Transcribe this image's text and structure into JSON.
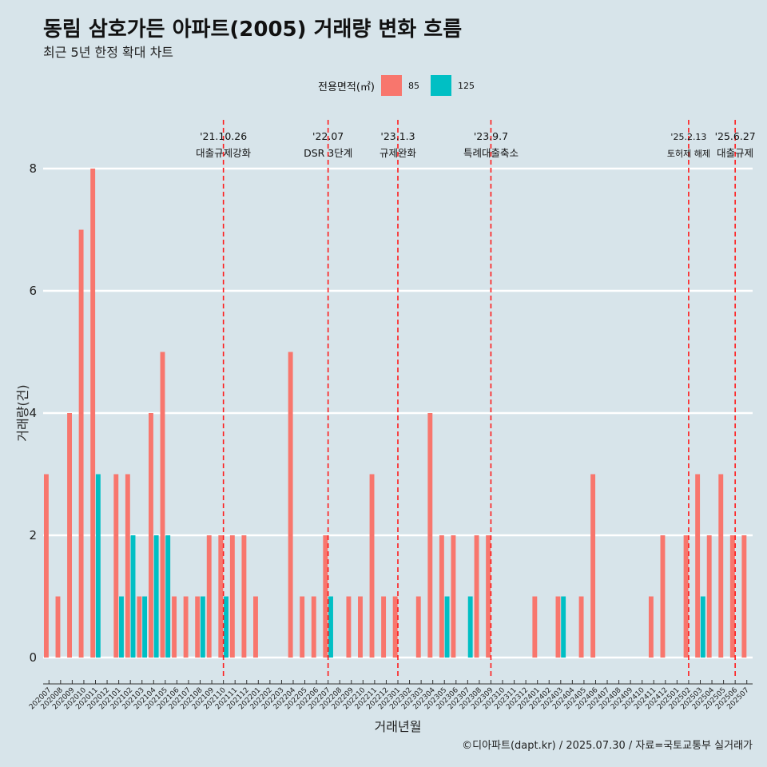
{
  "title": "동림 삼호가든 아파트(2005) 거래량 변화 흐름",
  "subtitle": "최근 5년 한정 확대 차트",
  "caption": "©디아파트(dapt.kr) / 2025.07.30 / 자료=국토교통부 실거래가",
  "legend": {
    "title": "전용면적(㎡)",
    "items": [
      {
        "label": "85",
        "color": "#f8766d"
      },
      {
        "label": "125",
        "color": "#00bfc4"
      }
    ]
  },
  "chart_data": {
    "type": "bar",
    "xlabel": "거래년월",
    "ylabel": "거래량(건)",
    "ylim": [
      0,
      8.8
    ],
    "yticks": [
      0,
      2,
      4,
      6,
      8
    ],
    "categories": [
      "202007",
      "202008",
      "202009",
      "202010",
      "202011",
      "202012",
      "202101",
      "202102",
      "202103",
      "202104",
      "202105",
      "202106",
      "202107",
      "202108",
      "202109",
      "202110",
      "202111",
      "202112",
      "202201",
      "202202",
      "202203",
      "202204",
      "202205",
      "202206",
      "202207",
      "202208",
      "202209",
      "202210",
      "202211",
      "202212",
      "202301",
      "202302",
      "202303",
      "202304",
      "202305",
      "202306",
      "202307",
      "202308",
      "202309",
      "202310",
      "202311",
      "202312",
      "202401",
      "202402",
      "202403",
      "202404",
      "202405",
      "202406",
      "202407",
      "202408",
      "202409",
      "202410",
      "202411",
      "202412",
      "202501",
      "202502",
      "202503",
      "202504",
      "202505",
      "202506",
      "202507"
    ],
    "series": [
      {
        "name": "85",
        "color": "#f8766d",
        "values": [
          3,
          1,
          4,
          7,
          8,
          0,
          3,
          3,
          1,
          4,
          5,
          1,
          1,
          1,
          2,
          2,
          2,
          2,
          1,
          0,
          0,
          5,
          1,
          1,
          2,
          0,
          1,
          1,
          3,
          1,
          1,
          0,
          1,
          4,
          2,
          2,
          0,
          2,
          2,
          0,
          0,
          0,
          1,
          0,
          1,
          0,
          1,
          3,
          0,
          0,
          0,
          0,
          1,
          2,
          0,
          2,
          3,
          2,
          3,
          2,
          2
        ]
      },
      {
        "name": "125",
        "color": "#00bfc4",
        "values": [
          0,
          0,
          0,
          0,
          3,
          0,
          1,
          2,
          1,
          2,
          2,
          0,
          0,
          1,
          0,
          1,
          0,
          0,
          0,
          0,
          0,
          0,
          0,
          0,
          1,
          0,
          0,
          0,
          0,
          0,
          0,
          0,
          0,
          0,
          1,
          0,
          1,
          0,
          0,
          0,
          0,
          0,
          0,
          0,
          1,
          0,
          0,
          0,
          0,
          0,
          0,
          0,
          0,
          0,
          0,
          0,
          1,
          0,
          0,
          0,
          0
        ]
      }
    ],
    "events": [
      {
        "month": "202110",
        "date": "'21.10.26",
        "label": "대출규제강화"
      },
      {
        "month": "202207",
        "date": "'22.07",
        "label": "DSR 3단계"
      },
      {
        "month": "202301",
        "date": "'23.1.3",
        "label": "규제완화"
      },
      {
        "month": "202309",
        "date": "'23.9.7",
        "label": "특례대출축소"
      },
      {
        "month": "202502",
        "date": "'25.2.13",
        "label": "토허제 해제"
      },
      {
        "month": "202506",
        "date": "'25.6.27",
        "label": "대출규제"
      }
    ],
    "grid": "horizontal",
    "legend_position": "top"
  }
}
